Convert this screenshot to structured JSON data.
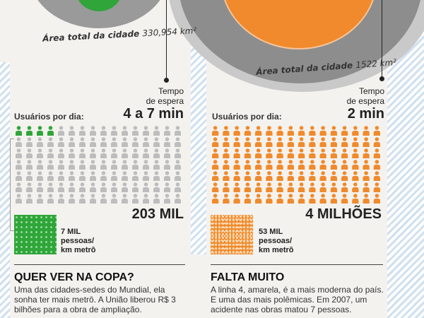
{
  "left": {
    "area_label": "Área total da cidade",
    "area_value": "330,954 km²",
    "wait_label_line1": "Tempo",
    "wait_label_line2": "de espera",
    "wait_value": "4 a 7 min",
    "users_label": "Usuários por dia:",
    "highlighted_icons": 4,
    "total": "203 MIL",
    "density_line1": "7 MIL",
    "density_line2": "pessoas/",
    "density_line3": "km metrô",
    "section_title": "QUER VER NA COPA?",
    "section_body": "Uma das cidades-sedes do Mundial, ela sonha ter mais metrô. A União liberou R$ 3 bilhões para a obra de ampliação."
  },
  "right": {
    "area_label": "Área total da cidade",
    "area_value": "1522 km²",
    "wait_label_line1": "Tempo",
    "wait_label_line2": "de espera",
    "wait_value": "2 min",
    "users_label": "Usuários por dia:",
    "total": "4 MILHÕES",
    "density_line1": "53 MIL",
    "density_line2": "pessoas/",
    "density_line3": "km metrô",
    "section_title": "FALTA MUITO",
    "section_body": "A linha 4, amarela, é a mais moderna do país. E uma das mais polêmicas. Em 2007, um acidente nas obras matou 7 pessoas."
  },
  "colors": {
    "green": "#2fa53a",
    "orange": "#f08a2c",
    "gray_icon": "#bdbdbd",
    "ring_gray": "#8d8d8d",
    "ring_light": "#c9c9c9"
  }
}
